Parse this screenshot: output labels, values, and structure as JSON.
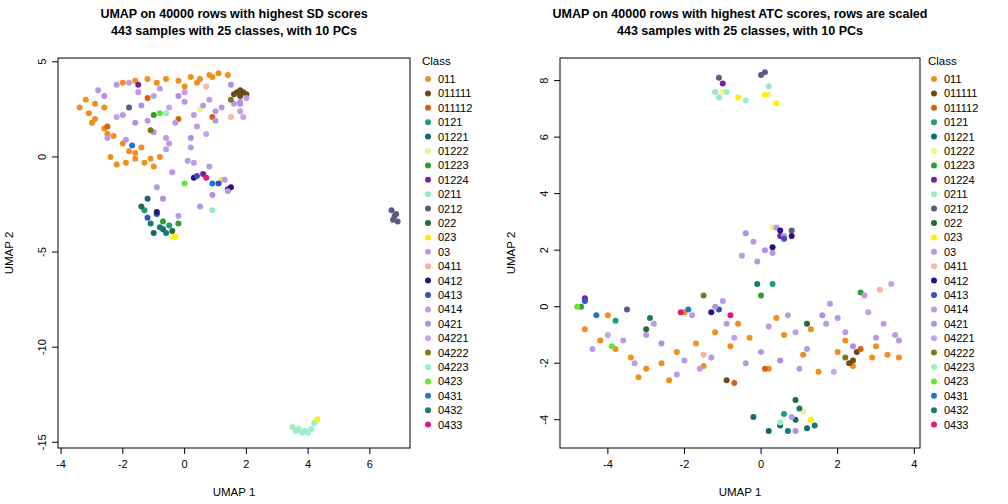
{
  "chart_data": [
    {
      "type": "scatter",
      "title": "UMAP on 40000 rows with highest SD scores",
      "subtitle": "443 samples with 25 classes, with 10 PCs",
      "x_label": "UMAP 1",
      "y_label": "UMAP 2",
      "legend_title": "Class",
      "legend": "right",
      "marker": "circle",
      "xlim": [
        -4.1,
        7.3
      ],
      "ylim": [
        -15.3,
        5.2
      ],
      "xticks": [
        -4,
        -2,
        0,
        2,
        4,
        6
      ],
      "yticks": [
        -15,
        -10,
        -5,
        0,
        5
      ],
      "series": [
        {
          "name": "011",
          "color": "#f28e1c",
          "x": [
            -3.4,
            -3.1,
            -2.9,
            -2.6,
            -2.3,
            -2.0,
            -1.8,
            -1.6,
            -1.3,
            -1.0,
            -0.6,
            -0.2,
            0.2,
            0.5,
            0.8,
            1.1,
            1.4,
            -3.2,
            -2.9,
            -2.6,
            -2.4,
            -2.2,
            -1.9,
            -1.6,
            -1.4,
            -1.1,
            -0.8,
            -2.0,
            -1.6,
            -1.2,
            -0.9,
            0.0,
            0.4,
            0.9,
            -3.0,
            -2.5
          ],
          "values": [
            2.6,
            2.3,
            2.0,
            1.5,
            1.1,
            0.7,
            0.3,
            -0.1,
            -0.3,
            -0.5,
            4.1,
            4.0,
            4.2,
            4.1,
            4.3,
            4.4,
            4.3,
            3.0,
            2.8,
            2.6,
            0.0,
            -0.4,
            -0.3,
            0.2,
            0.5,
            -0.1,
            0.0,
            3.9,
            4.0,
            4.1,
            3.9,
            3.7,
            3.9,
            4.2,
            1.8,
            1.2
          ]
        },
        {
          "name": "011111",
          "color": "#6b4a1b",
          "x": [
            1.7,
            1.8,
            1.9,
            2.0,
            1.8,
            1.6
          ],
          "values": [
            3.4,
            3.2,
            3.4,
            3.3,
            3.5,
            3.3
          ]
        },
        {
          "name": "011112",
          "color": "#d95f0e",
          "x": [
            -0.2,
            -1.2,
            0.9,
            -2.5
          ],
          "values": [
            2.0,
            3.1,
            2.1,
            1.6
          ]
        },
        {
          "name": "0121",
          "color": "#1b9e77",
          "x": [
            -1.3,
            -0.5
          ],
          "values": [
            -2.8,
            -3.6
          ]
        },
        {
          "name": "01221",
          "color": "#0f6b6b",
          "x": [
            -1.2,
            -0.9,
            -0.7,
            -1.0
          ],
          "values": [
            -2.2,
            -3.0,
            -3.8,
            -4.0
          ]
        },
        {
          "name": "01222",
          "color": "#f2f28a",
          "x": [
            -0.4,
            0.5
          ],
          "values": [
            -4.2,
            2.5
          ]
        },
        {
          "name": "01223",
          "color": "#2ca02c",
          "x": [
            -1.0,
            -0.7,
            -0.2
          ],
          "values": [
            2.2,
            -3.4,
            -3.5
          ]
        },
        {
          "name": "01224",
          "color": "#7b1fa2",
          "x": [
            1.4,
            0.6,
            -1.5
          ],
          "values": [
            -1.7,
            -0.9,
            3.8
          ]
        },
        {
          "name": "0211",
          "color": "#99e6c8",
          "x": [
            -0.6,
            0.9
          ],
          "values": [
            2.3,
            -2.8
          ]
        },
        {
          "name": "0212",
          "color": "#5a5a8a",
          "x": [
            6.7,
            6.8,
            6.9,
            6.75,
            6.85,
            -1.8
          ],
          "values": [
            -2.8,
            -3.1,
            -3.4,
            -3.3,
            -3.0,
            2.6
          ]
        },
        {
          "name": "022",
          "color": "#1f6b3a",
          "x": [
            -0.4,
            -1.4
          ],
          "values": [
            -3.9,
            -2.6
          ]
        },
        {
          "name": "023",
          "color": "#ffee00",
          "x": [
            4.3,
            -0.3,
            1.2
          ],
          "values": [
            -13.8,
            -4.2,
            -1.2
          ]
        },
        {
          "name": "03",
          "color": "#b999e6",
          "x": [
            -2.8,
            -2.2,
            -1.5,
            -0.8,
            0.0,
            0.6,
            1.2,
            1.8,
            2.0,
            -2.5,
            -1.9,
            -1.0,
            -0.3,
            0.3,
            1.0,
            1.6,
            -0.5,
            0.2,
            0.8,
            1.3,
            -2.0,
            -1.2,
            -0.6,
            0.4,
            1.0,
            -0.2,
            0.5,
            -0.9,
            -0.4,
            0.1
          ],
          "values": [
            3.5,
            3.8,
            3.4,
            3.6,
            2.9,
            2.7,
            2.6,
            2.9,
            3.1,
            1.0,
            0.9,
            1.3,
            1.8,
            2.2,
            2.4,
            2.8,
            0.7,
            0.5,
            -0.5,
            -1.2,
            2.2,
            1.9,
            1.0,
            1.6,
            1.9,
            -3.1,
            -2.6,
            -1.6,
            -0.8,
            -0.2
          ]
        },
        {
          "name": "0411",
          "color": "#f4b6a0",
          "x": [
            1.5,
            0.7
          ],
          "values": [
            2.1,
            3.7
          ]
        },
        {
          "name": "0412",
          "color": "#2b0f8f",
          "x": [
            0.3,
            1.5,
            -0.9
          ],
          "values": [
            -1.1,
            -1.6,
            -2.9
          ]
        },
        {
          "name": "0413",
          "color": "#3050c8",
          "x": [
            0.4,
            1.1,
            -1.2
          ],
          "values": [
            -1.0,
            -1.4,
            -3.2
          ]
        },
        {
          "name": "0414",
          "color": "#c09be0",
          "x": [
            -1.8,
            -1.0,
            0.0,
            0.8,
            1.8,
            -0.6,
            0.3,
            1.4
          ],
          "values": [
            3.9,
            3.2,
            3.4,
            3.0,
            2.4,
            0.4,
            -0.3,
            -1.8
          ]
        },
        {
          "name": "0421",
          "color": "#b28de8",
          "x": [
            -2.6,
            -1.4,
            -0.2,
            1.5,
            0.2,
            -0.7,
            0.9,
            1.8,
            -1.6
          ],
          "values": [
            3.2,
            2.7,
            3.2,
            3.8,
            1.0,
            -2.2,
            -2.0,
            2.8,
            1.8
          ]
        },
        {
          "name": "04221",
          "color": "#c4a3ec",
          "x": [
            -2.2,
            -0.5,
            0.7,
            1.9
          ],
          "values": [
            2.1,
            2.6,
            1.2,
            2.1
          ]
        },
        {
          "name": "04222",
          "color": "#7a7a1a",
          "x": [
            -1.1,
            1.5
          ],
          "values": [
            1.4,
            3.0
          ]
        },
        {
          "name": "04223",
          "color": "#99f0c8",
          "x": [
            3.5,
            3.6,
            3.7,
            3.8,
            3.9,
            4.0,
            4.1,
            4.2
          ],
          "values": [
            -14.2,
            -14.4,
            -14.3,
            -14.5,
            -14.4,
            -14.5,
            -14.3,
            -14.0
          ]
        },
        {
          "name": "0423",
          "color": "#66e633",
          "x": [
            -0.8,
            0.0
          ],
          "values": [
            2.3,
            -1.4
          ]
        },
        {
          "name": "0431",
          "color": "#1f77d4",
          "x": [
            -1.7,
            0.9
          ],
          "values": [
            0.6,
            -1.4
          ]
        },
        {
          "name": "0432",
          "color": "#167a6e",
          "x": [
            -1.1,
            -0.6,
            -0.8
          ],
          "values": [
            -3.5,
            -4.0,
            -3.7
          ]
        },
        {
          "name": "0433",
          "color": "#e6167a",
          "x": [
            0.7
          ],
          "values": [
            -1.1
          ]
        }
      ]
    },
    {
      "type": "scatter",
      "title": "UMAP on 40000 rows with highest ATC scores, rows are scaled",
      "subtitle": "443 samples with 25 classes, with 10 PCs",
      "x_label": "UMAP 1",
      "y_label": "UMAP 2",
      "legend_title": "Class",
      "legend": "right",
      "marker": "circle",
      "xlim": [
        -5.25,
        4.15
      ],
      "ylim": [
        -5.0,
        8.8
      ],
      "xticks": [
        -4,
        -2,
        0,
        2,
        4
      ],
      "yticks": [
        -4,
        -2,
        0,
        2,
        4,
        6,
        8
      ],
      "series": [
        {
          "name": "011",
          "color": "#f28e1c",
          "x": [
            -4.6,
            -4.2,
            -3.8,
            -3.4,
            -3.0,
            -2.6,
            -2.2,
            -1.7,
            -1.2,
            -0.8,
            -0.3,
            0.2,
            0.6,
            1.1,
            1.5,
            2.0,
            2.4,
            2.9,
            3.3,
            3.6,
            -4.0,
            -3.2,
            -2.4,
            -1.5,
            -0.6,
            0.4,
            1.3,
            2.2,
            3.0,
            -2.0
          ],
          "values": [
            -0.8,
            -1.2,
            -1.5,
            -1.8,
            -2.2,
            -2.0,
            -1.6,
            -1.3,
            -0.9,
            -1.4,
            -1.1,
            -2.2,
            -1.0,
            -1.7,
            -2.3,
            -1.6,
            -2.1,
            -1.8,
            -1.7,
            -1.8,
            -0.3,
            -2.5,
            -2.6,
            -2.1,
            -0.6,
            -0.4,
            -0.8,
            -1.2,
            -1.4,
            -0.2
          ]
        },
        {
          "name": "011111",
          "color": "#6b4a1b",
          "x": [
            2.4,
            2.5,
            -0.9,
            2.3
          ],
          "values": [
            -1.9,
            -1.6,
            -2.6,
            -2.0
          ]
        },
        {
          "name": "011112",
          "color": "#d95f0e",
          "x": [
            -0.7,
            0.1,
            2.6
          ],
          "values": [
            -2.7,
            -2.2,
            -1.5
          ]
        },
        {
          "name": "0121",
          "color": "#1b9e77",
          "x": [
            -3.8,
            0.3,
            0.6
          ],
          "values": [
            -0.5,
            0.8,
            -3.8
          ]
        },
        {
          "name": "01221",
          "color": "#0f6b6b",
          "x": [
            0.2,
            0.5,
            0.9,
            1.2,
            -0.2
          ],
          "values": [
            -4.4,
            -4.2,
            -4.0,
            -4.3,
            -3.9
          ]
        },
        {
          "name": "01222",
          "color": "#f2f28a",
          "x": [
            0.2,
            1.1,
            -1.0,
            0.3
          ],
          "values": [
            7.5,
            -3.7,
            7.6,
            2.8
          ]
        },
        {
          "name": "01223",
          "color": "#2ca02c",
          "x": [
            -4.7,
            2.6,
            0.0
          ],
          "values": [
            0.0,
            0.5,
            0.4
          ]
        },
        {
          "name": "01224",
          "color": "#7b1fa2",
          "x": [
            -1.0,
            0.5,
            -4.6
          ],
          "values": [
            7.9,
            2.5,
            0.3
          ]
        },
        {
          "name": "0211",
          "color": "#99e6c8",
          "x": [
            -1.2,
            0.2,
            -1.1
          ],
          "values": [
            7.6,
            7.8,
            7.4
          ]
        },
        {
          "name": "0212",
          "color": "#5a5a8a",
          "x": [
            -1.1,
            0.0,
            0.1,
            -3.5,
            0.8
          ],
          "values": [
            8.1,
            8.2,
            8.3,
            -0.1,
            2.7
          ]
        },
        {
          "name": "022",
          "color": "#1f6b3a",
          "x": [
            -3.0,
            1.2,
            0.9
          ],
          "values": [
            -0.8,
            -0.6,
            -3.3
          ]
        },
        {
          "name": "023",
          "color": "#ffee00",
          "x": [
            0.1,
            0.4,
            -0.6,
            1.3
          ],
          "values": [
            7.5,
            7.2,
            7.4,
            -4.0
          ]
        },
        {
          "name": "03",
          "color": "#b999e6",
          "x": [
            -4.4,
            -3.6,
            -2.8,
            -2.2,
            -1.8,
            -1.3,
            -0.9,
            -0.4,
            0.2,
            0.7,
            1.2,
            1.7,
            2.2,
            2.7,
            3.2,
            3.6,
            -3.0,
            -2.0,
            -1.0,
            0.0,
            1.0,
            2.0,
            3.0,
            -0.2,
            0.3,
            0.6,
            -0.1,
            0.4,
            0.8,
            1.8
          ],
          "values": [
            -1.5,
            -1.2,
            -0.6,
            -2.4,
            -0.3,
            -1.8,
            -0.6,
            -2.0,
            -0.7,
            -0.3,
            -1.5,
            -0.6,
            -0.9,
            0.4,
            -0.6,
            -1.2,
            -1.0,
            -1.9,
            0.2,
            -1.6,
            -2.2,
            -0.4,
            -1.1,
            2.3,
            1.9,
            2.5,
            1.6,
            2.8,
            -3.9,
            0.1
          ]
        },
        {
          "name": "0411",
          "color": "#f4b6a0",
          "x": [
            3.1,
            -1.5
          ],
          "values": [
            0.6,
            -1.7
          ]
        },
        {
          "name": "0412",
          "color": "#2b0f8f",
          "x": [
            0.5,
            0.8,
            0.3,
            -1.3
          ],
          "values": [
            2.7,
            2.5,
            2.1,
            -0.2
          ]
        },
        {
          "name": "0413",
          "color": "#3050c8",
          "x": [
            -4.6,
            0.6,
            -1.1
          ],
          "values": [
            0.2,
            2.4,
            -0.1
          ]
        },
        {
          "name": "0414",
          "color": "#c09be0",
          "x": [
            -3.3,
            -1.6,
            0.9,
            2.8,
            3.5,
            -0.5
          ],
          "values": [
            -2.0,
            -2.2,
            -0.9,
            -0.2,
            -1.0,
            1.8
          ]
        },
        {
          "name": "0421",
          "color": "#b28de8",
          "x": [
            -2.6,
            -1.2,
            0.5,
            1.6,
            2.4,
            -0.4,
            0.1,
            0.9
          ],
          "values": [
            -1.3,
            0.0,
            -1.9,
            -0.3,
            -1.4,
            2.6,
            2.0,
            -4.4
          ]
        },
        {
          "name": "04221",
          "color": "#c4a3ec",
          "x": [
            -4.0,
            -0.7,
            1.9,
            3.4
          ],
          "values": [
            -1.0,
            -1.1,
            -2.3,
            0.8
          ]
        },
        {
          "name": "04222",
          "color": "#7a7a1a",
          "x": [
            -1.5,
            2.2
          ],
          "values": [
            0.4,
            -1.8
          ]
        },
        {
          "name": "04223",
          "color": "#99f0c8",
          "x": [
            -0.9,
            -0.4,
            0.5
          ],
          "values": [
            7.6,
            7.3,
            -4.1
          ]
        },
        {
          "name": "0423",
          "color": "#66e633",
          "x": [
            -4.8,
            -3.9
          ],
          "values": [
            0.0,
            -1.4
          ]
        },
        {
          "name": "0431",
          "color": "#1f77d4",
          "x": [
            -1.9,
            -4.3
          ],
          "values": [
            -0.1,
            -0.3
          ]
        },
        {
          "name": "0432",
          "color": "#167a6e",
          "x": [
            1.0,
            0.7,
            -2.9,
            1.4,
            -0.1
          ],
          "values": [
            -3.6,
            -4.4,
            -0.4,
            -4.2,
            0.8
          ]
        },
        {
          "name": "0433",
          "color": "#e6167a",
          "x": [
            -2.1,
            -0.8
          ],
          "values": [
            -0.2,
            -0.3
          ]
        }
      ]
    }
  ]
}
